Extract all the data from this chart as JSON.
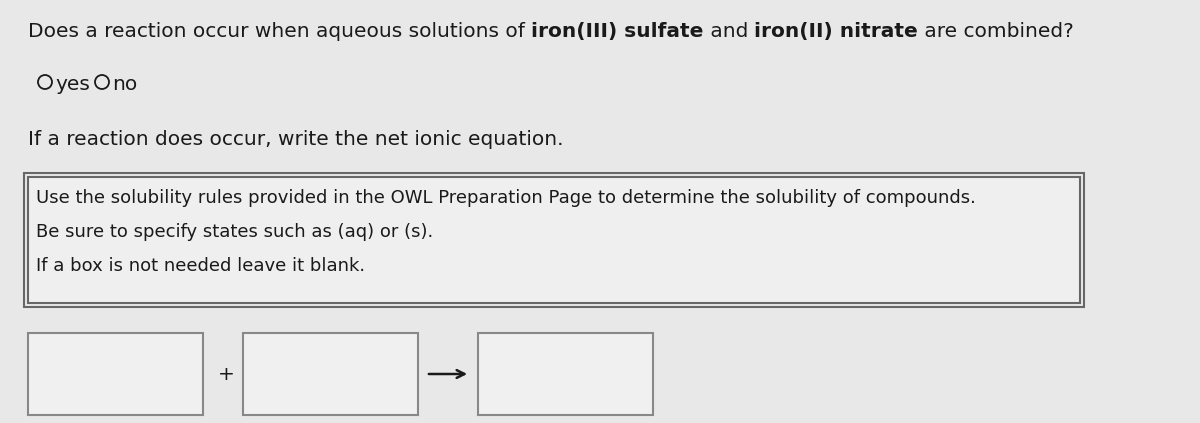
{
  "background_color": "#e8e8e8",
  "title_parts": [
    [
      "Does a reaction occur when aqueous solutions of ",
      false
    ],
    [
      "iron(III) sulfate",
      true
    ],
    [
      " and ",
      false
    ],
    [
      "iron(II) nitrate",
      true
    ],
    [
      " are combined?",
      false
    ]
  ],
  "yes_no_labels": [
    "yes",
    "no"
  ],
  "reaction_line": "If a reaction does occur, write the net ionic equation.",
  "instruction_lines": [
    "Use the solubility rules provided in the OWL Preparation Page to determine the solubility of compounds.",
    "Be sure to specify states such as (aq) or (s).",
    "If a box is not needed leave it blank."
  ],
  "text_color": "#1a1a1a",
  "font_size_main": 14.5,
  "font_size_instr": 13.0,
  "arrow_text": "→"
}
